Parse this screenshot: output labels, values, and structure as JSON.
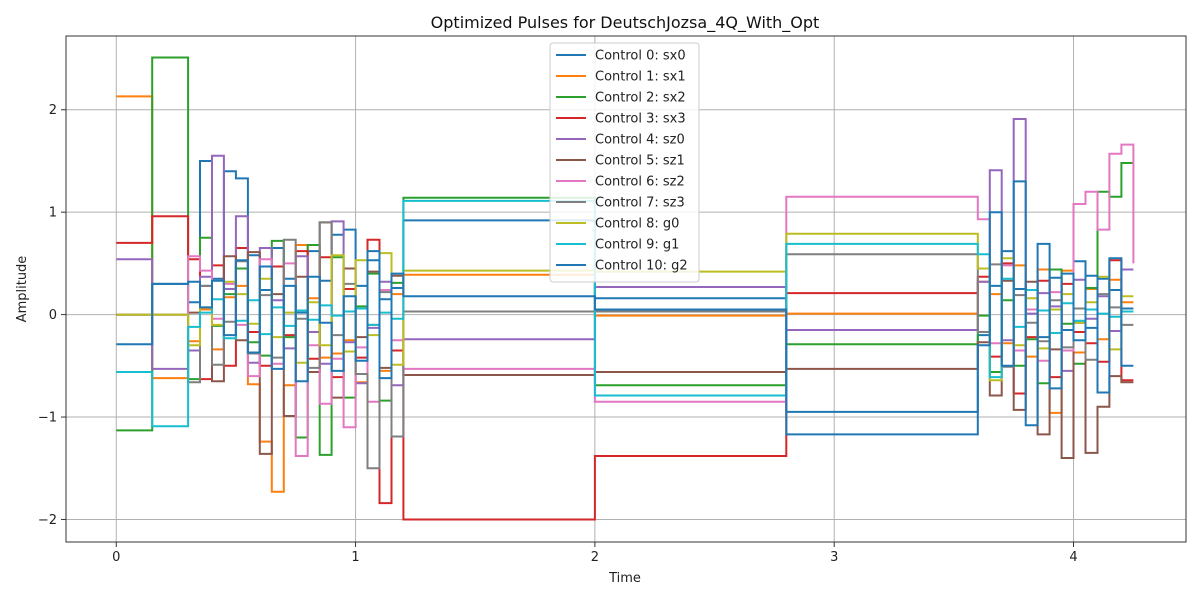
{
  "chart_data": {
    "type": "line",
    "step": "post",
    "title": "Optimized Pulses for DeutschJozsa_4Q_With_Opt",
    "xlabel": "Time",
    "ylabel": "Amplitude",
    "xlim": [
      -0.21,
      4.47
    ],
    "ylim": [
      -2.22,
      2.72
    ],
    "xticks": [
      0,
      1,
      2,
      3,
      4
    ],
    "yticks": [
      -2,
      -1,
      0,
      1,
      2
    ],
    "grid": true,
    "legend_position": "top-center",
    "x": [
      0,
      0.15,
      0.3,
      0.35,
      0.4,
      0.45,
      0.5,
      0.55,
      0.6,
      0.65,
      0.7,
      0.75,
      0.8,
      0.85,
      0.9,
      0.95,
      1.0,
      1.05,
      1.1,
      1.15,
      1.2,
      2.0,
      2.8,
      3.6,
      3.65,
      3.7,
      3.75,
      3.8,
      3.85,
      3.9,
      3.95,
      4.0,
      4.05,
      4.1,
      4.15,
      4.2,
      4.25
    ],
    "series": [
      {
        "name": "Control 0: sx0",
        "color": "#1f77b4",
        "values": [
          0,
          0.3,
          0.12,
          1.5,
          0.35,
          1.4,
          1.33,
          0.58,
          0.24,
          0.65,
          0.35,
          0.02,
          0.62,
          0.33,
          0.78,
          0.83,
          0.28,
          0.53,
          0.15,
          0.26,
          0.92,
          0.16,
          -0.95,
          -0.2,
          0.28,
          0.62,
          0.25,
          0.05,
          -0.22,
          0.36,
          -0.15,
          0.52,
          -0.13,
          0.35,
          0.24,
          0.06,
          0.06
        ]
      },
      {
        "name": "Control 1: sx1",
        "color": "#ff7f0e",
        "values": [
          2.13,
          -0.62,
          -0.26,
          0.05,
          -0.34,
          0.17,
          0.28,
          -0.68,
          -1.24,
          -1.73,
          -0.69,
          0.68,
          0.16,
          -0.42,
          -0.38,
          -0.25,
          -0.66,
          -0.1,
          -0.55,
          0.2,
          0.39,
          -0.01,
          0.01,
          0.32,
          0.2,
          -0.28,
          0.48,
          -0.41,
          0.44,
          -0.96,
          0.43,
          -0.37,
          0.25,
          -0.24,
          0.34,
          0.12,
          0.12
        ]
      },
      {
        "name": "Control 2: sx2",
        "color": "#2ca02c",
        "values": [
          -1.13,
          2.51,
          -0.63,
          0.75,
          -0.11,
          0.2,
          0.45,
          -0.27,
          -0.4,
          0.72,
          -0.22,
          -1.2,
          0.68,
          -1.37,
          0.56,
          -0.81,
          0.08,
          0.4,
          -0.84,
          0.31,
          1.14,
          -0.69,
          -0.29,
          -0.01,
          -0.56,
          0.14,
          -0.5,
          -0.24,
          -0.67,
          0.44,
          -0.09,
          -0.48,
          0.26,
          1.2,
          1.15,
          1.48,
          1.48
        ]
      },
      {
        "name": "Control 3: sx3",
        "color": "#d62728",
        "values": [
          0.7,
          0.96,
          0.54,
          -0.63,
          0.48,
          -0.5,
          0.65,
          -0.17,
          -0.5,
          0.47,
          -0.2,
          0.62,
          -0.43,
          0.56,
          -0.61,
          0.25,
          -0.42,
          0.73,
          -1.84,
          -0.35,
          -2.0,
          -1.38,
          0.21,
          0.37,
          -0.41,
          0.5,
          -0.77,
          -0.22,
          0.33,
          -0.61,
          0.3,
          -0.17,
          -0.28,
          -0.46,
          0.53,
          -0.64,
          -0.64
        ]
      },
      {
        "name": "Control 4: sz0",
        "color": "#9467bd",
        "values": [
          0.54,
          -0.53,
          -0.35,
          0.37,
          1.55,
          0.25,
          0.96,
          -0.47,
          0.65,
          0.14,
          -0.33,
          0.57,
          -0.17,
          -0.48,
          0.91,
          -0.27,
          -0.67,
          -0.13,
          0.32,
          -0.69,
          -0.24,
          0.27,
          -0.15,
          0.32,
          1.41,
          -0.25,
          1.91,
          0.01,
          0.21,
          0.08,
          -0.55,
          0.34,
          -0.04,
          0.18,
          -0.16,
          0.44,
          0.44
        ]
      },
      {
        "name": "Control 5: sz1",
        "color": "#8c564b",
        "values": [
          0,
          0,
          0.02,
          0.28,
          -0.65,
          0.57,
          -0.25,
          0.61,
          -1.36,
          0.2,
          -0.99,
          0.37,
          -0.56,
          0.9,
          -0.81,
          0.45,
          -0.22,
          0.42,
          -0.52,
          0.38,
          -0.59,
          -0.56,
          -0.53,
          -0.27,
          -0.79,
          0.33,
          -0.93,
          0.32,
          -1.17,
          -0.34,
          -1.4,
          -0.08,
          -1.35,
          -0.9,
          -0.6,
          -0.66,
          -0.66
        ]
      },
      {
        "name": "Control 6: sz2",
        "color": "#e377c2",
        "values": [
          0,
          0,
          0.57,
          0.43,
          -0.04,
          0.3,
          -0.1,
          -0.6,
          0.54,
          -0.48,
          0.5,
          -1.38,
          -0.3,
          -0.87,
          -0.43,
          -1.1,
          -0.32,
          -0.85,
          0.24,
          -0.25,
          -0.53,
          -0.85,
          1.15,
          0.93,
          -0.28,
          0.48,
          -0.35,
          0.05,
          -0.45,
          0.22,
          -0.35,
          1.08,
          1.2,
          0.83,
          1.57,
          1.66,
          0.5
        ]
      },
      {
        "name": "Control 7: sz3",
        "color": "#7f7f7f",
        "values": [
          0,
          0,
          -0.66,
          0.28,
          -0.49,
          -0.07,
          0.52,
          -0.38,
          0.19,
          -0.42,
          0.73,
          -0.04,
          -0.52,
          0.9,
          -0.2,
          0.3,
          -0.58,
          -1.5,
          0.22,
          -1.19,
          0.03,
          0.03,
          0.59,
          -0.17,
          0.49,
          -0.51,
          0.19,
          -0.08,
          -0.26,
          0.14,
          -0.32,
          0.06,
          -0.44,
          0.2,
          0.07,
          -0.1,
          -0.1
        ]
      },
      {
        "name": "Control 8: g0",
        "color": "#bcbd22",
        "values": [
          0,
          0,
          -0.3,
          0.07,
          -0.1,
          0.32,
          0.2,
          -0.09,
          0.35,
          -0.22,
          0.02,
          -0.47,
          0.12,
          -0.3,
          0.58,
          -0.36,
          0.53,
          -0.2,
          0.6,
          -0.49,
          0.43,
          0.42,
          0.79,
          0.45,
          -0.64,
          0.55,
          -0.3,
          0.16,
          -0.33,
          0.05,
          0.2,
          -0.08,
          0.12,
          0.37,
          -0.34,
          0.18,
          0.18
        ]
      },
      {
        "name": "Control 9: g1",
        "color": "#17becf",
        "values": [
          -0.56,
          -1.09,
          -0.12,
          0.02,
          0.15,
          -0.23,
          -0.06,
          0.14,
          -0.19,
          0.07,
          -0.11,
          0.04,
          -0.05,
          0.09,
          -0.01,
          0.03,
          0.06,
          -0.1,
          0.02,
          -0.04,
          1.11,
          -0.79,
          0.69,
          0.59,
          -0.61,
          0.35,
          -0.12,
          0.24,
          0.04,
          -0.18,
          0.11,
          -0.06,
          0.05,
          0.01,
          -0.02,
          0.03,
          0.03
        ]
      },
      {
        "name": "Control 10: g2",
        "color": "#1f77b4",
        "values": [
          -0.29,
          0.3,
          0.32,
          0.07,
          0.33,
          -0.2,
          0.53,
          -0.37,
          0.47,
          -0.53,
          0.28,
          -0.65,
          0.37,
          -0.08,
          -0.55,
          0.18,
          -0.45,
          0.62,
          -0.62,
          0.4,
          0.18,
          0.05,
          -1.17,
          -0.3,
          1.0,
          -0.5,
          1.3,
          -1.08,
          0.69,
          -0.72,
          0.4,
          -0.25,
          0.38,
          -0.76,
          0.55,
          -0.5,
          -0.5
        ]
      }
    ]
  }
}
